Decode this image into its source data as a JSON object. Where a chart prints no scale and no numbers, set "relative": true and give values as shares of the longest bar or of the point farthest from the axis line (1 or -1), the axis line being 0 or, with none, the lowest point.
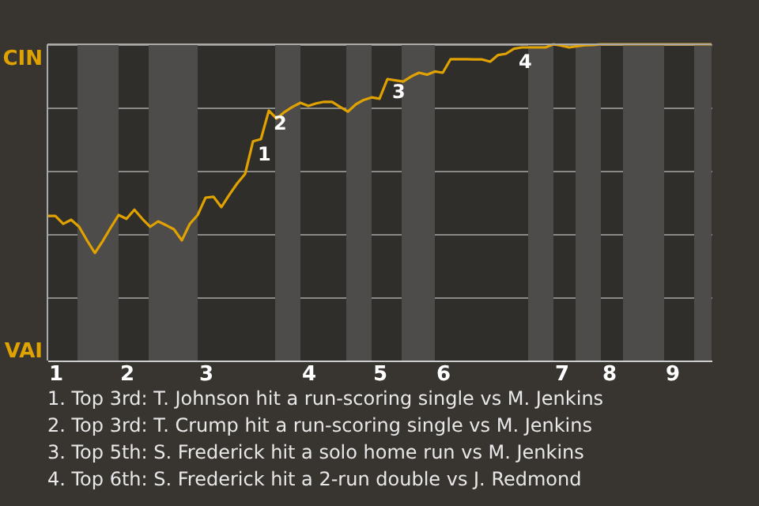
{
  "chart_data": {
    "type": "line",
    "relative": true,
    "categories": [
      null,
      "1",
      null,
      null,
      null,
      null,
      null,
      null,
      null,
      null,
      "2",
      null,
      null,
      null,
      null,
      null,
      null,
      null,
      null,
      null,
      "3",
      null,
      null,
      null,
      null,
      null,
      null,
      null,
      null,
      null,
      null,
      null,
      null,
      "4",
      null,
      null,
      null,
      null,
      null,
      null,
      null,
      null,
      "5",
      null,
      null,
      null,
      null,
      null,
      null,
      null,
      "6",
      null,
      null,
      null,
      null,
      null,
      null,
      null,
      null,
      null,
      null,
      null,
      null,
      null,
      null,
      "7",
      null,
      null,
      null,
      null,
      null,
      "8",
      null,
      null,
      null,
      null,
      null,
      null,
      null,
      "9",
      null,
      null,
      null,
      null,
      null
    ],
    "series": [
      {
        "color": "#e0a200",
        "values": [
          0.457,
          0.457,
          0.432,
          0.445,
          0.423,
          0.38,
          0.34,
          0.378,
          0.42,
          0.46,
          0.448,
          0.477,
          0.448,
          0.423,
          0.44,
          0.428,
          0.415,
          0.38,
          0.432,
          0.46,
          0.515,
          0.518,
          0.485,
          0.524,
          0.56,
          0.59,
          0.693,
          0.7,
          0.79,
          0.765,
          0.786,
          0.802,
          0.815,
          0.805,
          0.813,
          0.818,
          0.818,
          0.802,
          0.787,
          0.81,
          0.824,
          0.832,
          0.828,
          0.89,
          0.886,
          0.882,
          0.898,
          0.91,
          0.904,
          0.914,
          0.91,
          0.953,
          0.953,
          0.953,
          0.952,
          0.952,
          0.945,
          0.966,
          0.97,
          0.986,
          0.99,
          0.99,
          0.99,
          0.99,
          1,
          0.996,
          0.99,
          0.994,
          0.997,
          0.998,
          1,
          1,
          1,
          1,
          1,
          1,
          1,
          1,
          1,
          1,
          1,
          1,
          1,
          1,
          1
        ]
      }
    ],
    "grid": "y",
    "marker": "none",
    "line_style": "solid",
    "annotations": [
      "CIN",
      "VAI",
      {
        "text": "1",
        "y": 0.693
      },
      {
        "text": "2",
        "y": 0.79
      },
      {
        "text": "3",
        "y": 0.89
      },
      {
        "text": "4",
        "y": 0.986
      },
      "1. Top 3rd: T. Johnson hit a run-scoring single vs M. Jenkins",
      "2. Top 3rd: T. Crump hit a run-scoring single vs M. Jenkins",
      "3. Top 5th: S. Frederick hit a solo home run vs M. Jenkins",
      "4. Top 6th: S. Frederick hit a 2-run double vs J. Redmond"
    ]
  }
}
